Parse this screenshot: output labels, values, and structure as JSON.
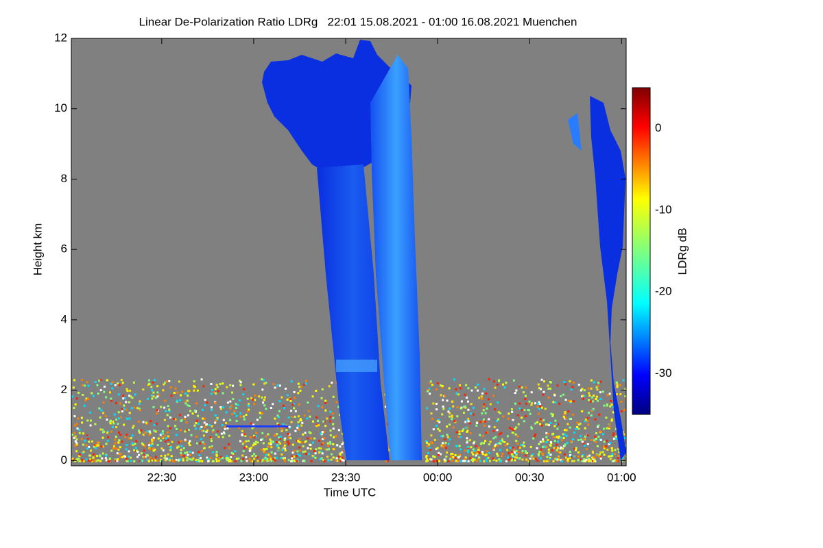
{
  "chart_data": {
    "type": "heatmap",
    "title": "Linear De-Polarization Ratio LDRg   22:01 15.08.2021 - 01:00 16.08.2021 Muenchen",
    "x_label": "Time UTC",
    "y_label": "Height km",
    "colorbar_label": "LDRg dB",
    "xlim": [
      1320.5,
      1501.5
    ],
    "xticks": [
      {
        "value": 1350,
        "label": "22:30"
      },
      {
        "value": 1380,
        "label": "23:00"
      },
      {
        "value": 1410,
        "label": "23:30"
      },
      {
        "value": 1440,
        "label": "00:00"
      },
      {
        "value": 1470,
        "label": "00:30"
      },
      {
        "value": 1500,
        "label": "01:00"
      }
    ],
    "ylim": [
      -0.15,
      12
    ],
    "yticks": [
      0,
      2,
      4,
      6,
      8,
      10,
      12
    ],
    "clim": [
      -35,
      5
    ],
    "cticks": [
      0,
      -10,
      -20,
      -30
    ]
  }
}
